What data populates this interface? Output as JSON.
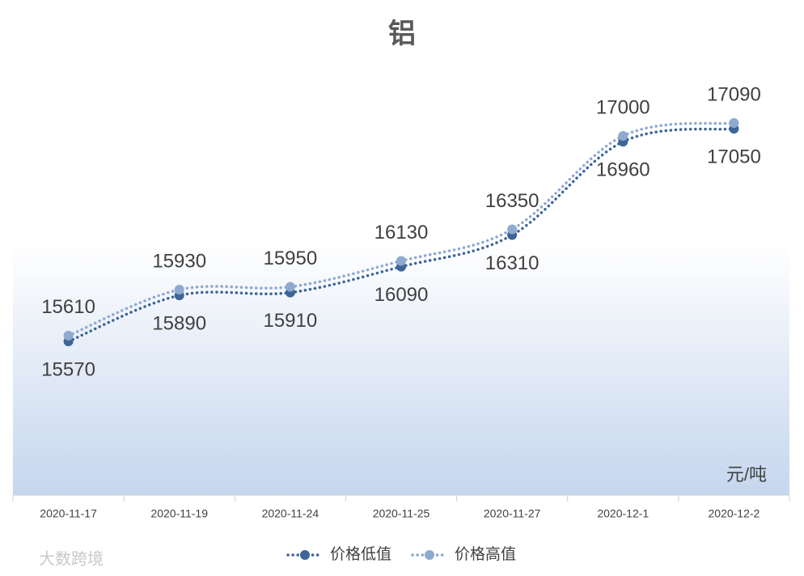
{
  "chart_data": {
    "type": "line",
    "title": "铝",
    "unit_label": "元/吨",
    "watermark": "大数跨境",
    "categories": [
      "2020-11-17",
      "2020-11-19",
      "2020-11-24",
      "2020-11-25",
      "2020-11-27",
      "2020-12-1",
      "2020-12-2"
    ],
    "series": [
      {
        "name": "价格低值",
        "color": "#3e6597",
        "values": [
          15570,
          15890,
          15910,
          16090,
          16310,
          16960,
          17050
        ]
      },
      {
        "name": "价格高值",
        "color": "#8fa9cf",
        "values": [
          15610,
          15930,
          15950,
          16130,
          16350,
          17000,
          17090
        ]
      }
    ],
    "legend": "bottom"
  }
}
